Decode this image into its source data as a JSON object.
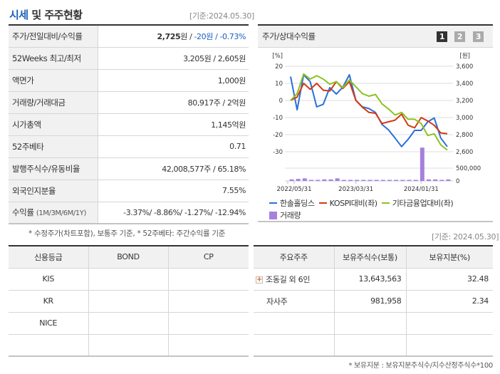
{
  "header": {
    "title_accent": "시세",
    "title_rest": " 및 주주현황",
    "basis": "[기준:2024.05.30]"
  },
  "price_info": {
    "rows": [
      {
        "label": "주가/전일대비/수익률",
        "price": "2,725",
        "price_unit": "원 / ",
        "change": "-20원",
        "sep": " / ",
        "rate": "-0.73%"
      },
      {
        "label": "52Weeks 최고/최저",
        "value": "3,205원 / 2,605원"
      },
      {
        "label": "액면가",
        "value": "1,000원"
      },
      {
        "label": "거래량/거래대금",
        "value": "80,917주 / 2억원"
      },
      {
        "label": "시가총액",
        "value": "1,145억원"
      },
      {
        "label": "52주베타",
        "value": "0.71"
      },
      {
        "label": "발행주식수/유동비율",
        "value": "42,008,577주 / 65.18%"
      },
      {
        "label": "외국인지분율",
        "value": "7.55%"
      },
      {
        "label": "수익률",
        "label_sub": "(1M/3M/6M/1Y)",
        "value": "-3.37%/ -8.86%/ -1.27%/ -12.94%"
      }
    ],
    "note": "* 수정주가(차트포함), 보통주 기준, * 52주베타: 주간수익률 기준"
  },
  "chart_panel": {
    "title": "주가/상대수익률",
    "pages": [
      "1",
      "2",
      "3"
    ],
    "active_page": 0,
    "legend": [
      {
        "label": "한솔홀딩스",
        "color": "#2a6fdb",
        "kind": "line"
      },
      {
        "label": "KOSPI대비(좌)",
        "color": "#d23a12",
        "kind": "line"
      },
      {
        "label": "기타금융업대비(좌)",
        "color": "#8cc21f",
        "kind": "line"
      },
      {
        "label": "거래량",
        "color": "#a77fdd",
        "kind": "bar"
      }
    ]
  },
  "chart_data": {
    "type": "line",
    "title": "주가/상대수익률",
    "y_left_label": "[%]",
    "y_right_label": "[원]",
    "y_left_ticks": [
      "20",
      "10",
      "0",
      "-10",
      "-20",
      "-30"
    ],
    "y_left_range": [
      -30,
      20
    ],
    "y_right_ticks": [
      "3,600",
      "3,400",
      "3,200",
      "3,000",
      "2,800",
      "2,600"
    ],
    "y_right_range": [
      2600,
      3600
    ],
    "volume_ticks": [
      "500,000",
      "0"
    ],
    "x_tick_labels": [
      "2022/05/31",
      "2023/03/31",
      "2024/01/31"
    ],
    "grid": true,
    "legend_position": "bottom",
    "series": [
      {
        "name": "한솔홀딩스",
        "axis": "right",
        "color": "#2a6fdb",
        "values": [
          3480,
          3090,
          3500,
          3420,
          3125,
          3155,
          3350,
          3275,
          3355,
          3500,
          3200,
          3125,
          3105,
          3060,
          2920,
          2855,
          2760,
          2660,
          2745,
          2850,
          2850,
          2950,
          2995,
          2760,
          2660
        ]
      },
      {
        "name": "KOSPI대비(좌)",
        "axis": "left",
        "color": "#d23a12",
        "values": [
          0,
          2,
          10,
          6.5,
          10,
          6,
          5.5,
          11,
          7,
          11,
          0,
          -4,
          -7,
          -7.5,
          -13.5,
          -12.5,
          -11.5,
          -8,
          -14.5,
          -16,
          -10,
          -12,
          -14.5,
          -19,
          -19.5
        ]
      },
      {
        "name": "기타금융업대비(좌)",
        "axis": "left",
        "color": "#8cc21f",
        "values": [
          0,
          4,
          15.5,
          12.5,
          14.5,
          12.5,
          9.5,
          11,
          7.5,
          12,
          8,
          4,
          2.5,
          3.5,
          -2,
          -5,
          -8.5,
          -7,
          -11,
          -11,
          -13.5,
          -20.5,
          -19.5,
          -26,
          -29
        ]
      },
      {
        "name": "거래량",
        "axis": "volume",
        "color": "#a77fdd",
        "values": [
          60000,
          80000,
          100000,
          20000,
          35000,
          60000,
          60000,
          100000,
          40000,
          20000,
          35000,
          35000,
          35000,
          35000,
          35000,
          20000,
          20000,
          20000,
          20000,
          20000,
          1300000,
          60000,
          60000,
          20000,
          60000
        ]
      }
    ]
  },
  "credit": {
    "headers": [
      "신용등급",
      "BOND",
      "CP"
    ],
    "rows": [
      [
        "KIS",
        "",
        ""
      ],
      [
        "KR",
        "",
        ""
      ],
      [
        "NICE",
        "",
        ""
      ],
      [
        "",
        "",
        ""
      ]
    ]
  },
  "shareholders": {
    "basis": "[기준: 2024.05.30]",
    "headers": [
      "주요주주",
      "보유주식수(보통)",
      "보유지분(%)"
    ],
    "rows": [
      {
        "name": "조동길 외 6인",
        "shares": "13,643,563",
        "pct": "32.48",
        "expandable": true
      },
      {
        "name": "자사주",
        "shares": "981,958",
        "pct": "2.34",
        "expandable": false
      },
      {
        "name": "",
        "shares": "",
        "pct": ""
      },
      {
        "name": "",
        "shares": "",
        "pct": ""
      }
    ],
    "note": "* 보유지분 : 보유지분주식수/지수산정주식수*100"
  }
}
